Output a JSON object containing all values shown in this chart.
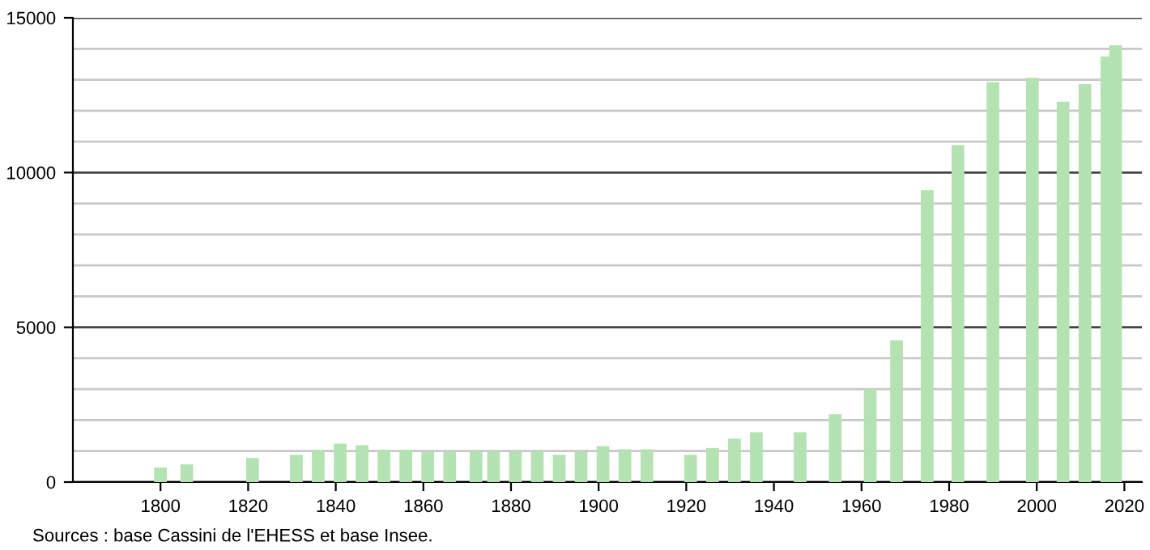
{
  "chart_data": {
    "type": "bar",
    "color": "#b3e3b0",
    "grid": "y",
    "x": [
      1800,
      1806,
      1821,
      1831,
      1836,
      1841,
      1846,
      1851,
      1856,
      1861,
      1866,
      1872,
      1876,
      1881,
      1886,
      1891,
      1896,
      1901,
      1906,
      1911,
      1921,
      1926,
      1931,
      1936,
      1946,
      1954,
      1962,
      1968,
      1975,
      1982,
      1990,
      1999,
      2006,
      2011,
      2016,
      2018
    ],
    "values": [
      470,
      570,
      780,
      880,
      1040,
      1240,
      1190,
      1040,
      1040,
      970,
      970,
      990,
      990,
      990,
      990,
      880,
      990,
      1160,
      1060,
      1060,
      880,
      1100,
      1400,
      1610,
      1610,
      2190,
      3020,
      4580,
      9430,
      10890,
      12920,
      13060,
      12290,
      12860,
      13750,
      14110
    ],
    "xlim": [
      1780,
      2024
    ],
    "xticks": [
      1800,
      1820,
      1840,
      1860,
      1880,
      1900,
      1920,
      1940,
      1960,
      1980,
      2000,
      2020
    ],
    "ylim": [
      0,
      15000
    ],
    "yticks": [
      0,
      {
        "value": 1000,
        "label": null
      },
      {
        "value": 2000,
        "label": null
      },
      {
        "value": 3000,
        "label": null
      },
      {
        "value": 4000,
        "label": null
      },
      5000,
      {
        "value": 6000,
        "label": null
      },
      {
        "value": 7000,
        "label": null
      },
      {
        "value": 8000,
        "label": null
      },
      {
        "value": 9000,
        "label": null
      },
      10000,
      {
        "value": 11000,
        "label": null
      },
      {
        "value": 12000,
        "label": null
      },
      {
        "value": 13000,
        "label": null
      },
      {
        "value": 14000,
        "label": null
      },
      15000
    ],
    "annotations": [
      "Sources : base Cassini de l'EHESS et base Insee."
    ]
  }
}
